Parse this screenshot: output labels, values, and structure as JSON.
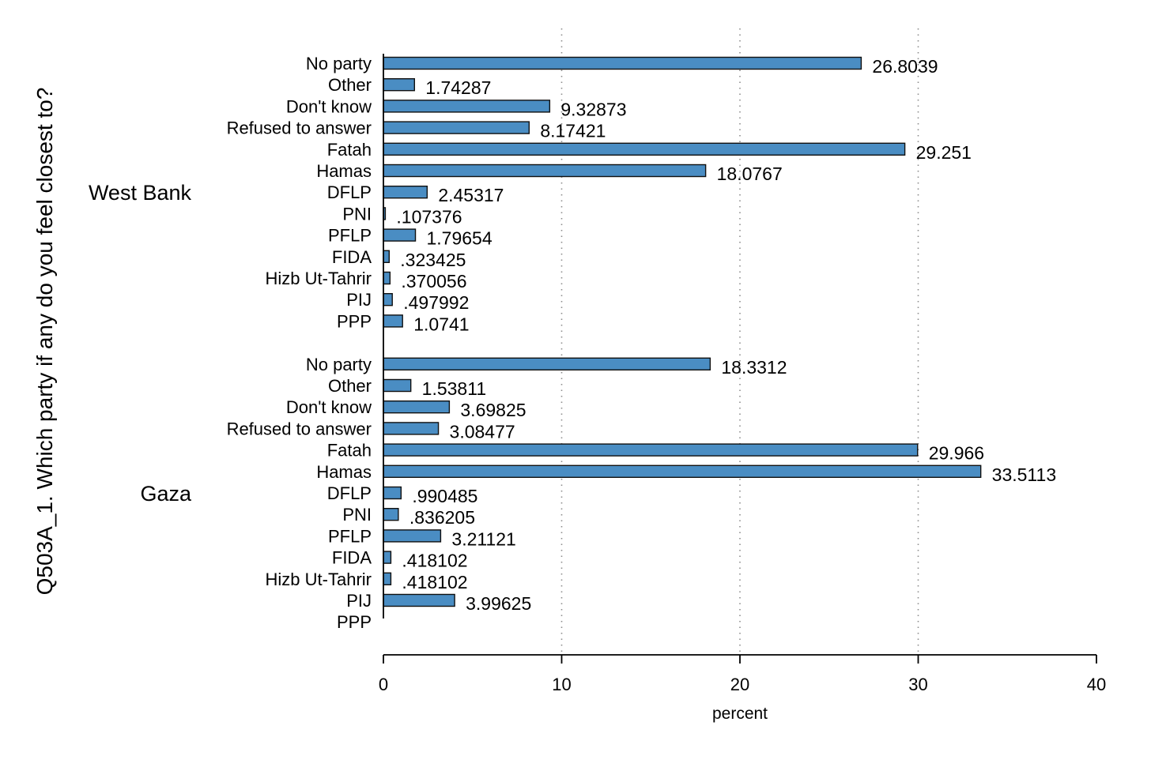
{
  "chart_data": {
    "type": "bar",
    "orientation": "horizontal",
    "title": "",
    "ylabel": "Q503A_1. Which party if any do you feel closest to?",
    "xlabel": "percent",
    "xlim": [
      0,
      40
    ],
    "xticks": [
      0,
      10,
      20,
      30,
      40
    ],
    "grid": true,
    "bar_color": "#4a8dc3",
    "groups": [
      {
        "name": "West Bank",
        "categories": [
          "No party",
          "Other",
          "Don't know",
          "Refused to answer",
          "Fatah",
          "Hamas",
          "DFLP",
          "PNI",
          "PFLP",
          "FIDA",
          "Hizb Ut-Tahrir",
          "PIJ",
          "PPP"
        ],
        "values": [
          26.8039,
          1.74287,
          9.32873,
          8.17421,
          29.251,
          18.0767,
          2.45317,
          0.107376,
          1.79654,
          0.323425,
          0.370056,
          0.497992,
          1.0741
        ],
        "labels": [
          "26.8039",
          "1.74287",
          "9.32873",
          "8.17421",
          "29.251",
          "18.0767",
          "2.45317",
          ".107376",
          "1.79654",
          ".323425",
          ".370056",
          ".497992",
          "1.0741"
        ]
      },
      {
        "name": "Gaza",
        "categories": [
          "No party",
          "Other",
          "Don't know",
          "Refused to answer",
          "Fatah",
          "Hamas",
          "DFLP",
          "PNI",
          "PFLP",
          "FIDA",
          "Hizb Ut-Tahrir",
          "PIJ",
          "PPP"
        ],
        "values": [
          18.3312,
          1.53811,
          3.69825,
          3.08477,
          29.966,
          33.5113,
          0.990485,
          0.836205,
          3.21121,
          0.418102,
          0.418102,
          3.99625,
          null
        ],
        "labels": [
          "18.3312",
          "1.53811",
          "3.69825",
          "3.08477",
          "29.966",
          "33.5113",
          ".990485",
          ".836205",
          "3.21121",
          ".418102",
          ".418102",
          "3.99625",
          ""
        ]
      }
    ]
  }
}
